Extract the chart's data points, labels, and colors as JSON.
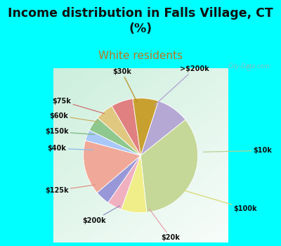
{
  "title": "Income distribution in Falls Village, CT\n(%)",
  "subtitle": "White residents",
  "title_fontsize": 12.5,
  "subtitle_fontsize": 11,
  "cyan_bg": "#00FFFF",
  "chart_bg_left": "#c5e8d0",
  "chart_bg_right": "#eaf5f0",
  "labels": [
    ">$200k",
    "$10k",
    "$100k",
    "$20k",
    "$200k",
    "$125k",
    "$40k",
    "$150k",
    "$60k",
    "$75k",
    "$30k"
  ],
  "values": [
    9,
    33,
    7,
    4,
    4,
    15,
    3,
    4,
    5,
    6,
    7
  ],
  "colors": [
    "#b5a8d5",
    "#c5d898",
    "#f0ee88",
    "#f0b0c0",
    "#9898d8",
    "#f0a898",
    "#a8c8f8",
    "#8ec88e",
    "#e0c880",
    "#e08080",
    "#c8a030"
  ],
  "startangle": 72,
  "watermark": "City-Data.com"
}
